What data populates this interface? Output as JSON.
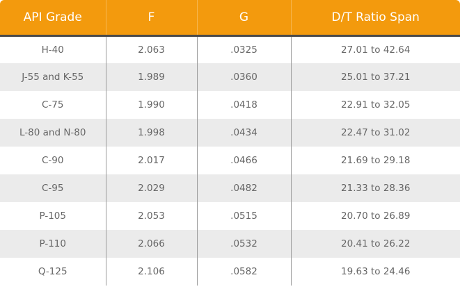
{
  "table": {
    "headers": [
      "API Grade",
      "F",
      "G",
      "D/T Ratio Span"
    ],
    "rows": [
      [
        "H-40",
        "2.063",
        ".0325",
        "27.01 to 42.64"
      ],
      [
        "J-55 and K-55",
        "1.989",
        ".0360",
        "25.01 to 37.21"
      ],
      [
        "C-75",
        "1.990",
        ".0418",
        "22.91 to 32.05"
      ],
      [
        "L-80 and N-80",
        "1.998",
        ".0434",
        "22.47 to 31.02"
      ],
      [
        "C-90",
        "2.017",
        ".0466",
        "21.69 to 29.18"
      ],
      [
        "C-95",
        "2.029",
        ".0482",
        "21.33 to 28.36"
      ],
      [
        "P-105",
        "2.053",
        ".0515",
        "20.70 to 26.89"
      ],
      [
        "P-110",
        "2.066",
        ".0532",
        "20.41 to 26.22"
      ],
      [
        "Q-125",
        "2.106",
        ".0582",
        "19.63 to 24.46"
      ]
    ]
  },
  "colors": {
    "header_bg": "#f39a0d",
    "header_text": "#ffffff",
    "row_alt_bg": "#ebebeb",
    "cell_text": "#666666"
  }
}
